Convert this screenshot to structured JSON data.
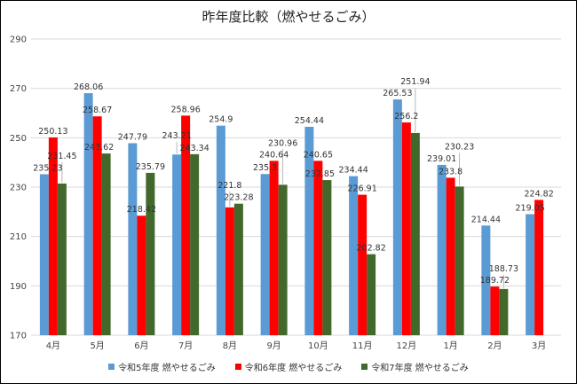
{
  "chart_data": {
    "type": "bar",
    "title": "昨年度比較（燃やせるごみ）",
    "categories": [
      "4月",
      "5月",
      "6月",
      "7月",
      "8月",
      "9月",
      "10月",
      "11月",
      "12月",
      "1月",
      "2月",
      "3月"
    ],
    "ylim": [
      170,
      290
    ],
    "yticks": [
      170,
      190,
      210,
      230,
      250,
      270,
      290
    ],
    "grid": true,
    "legend_position": "bottom",
    "series": [
      {
        "name": "令和5年度 燃やせるごみ",
        "color": "#5B9BD5",
        "values": [
          235.23,
          268.06,
          247.79,
          243.21,
          254.9,
          235.3,
          254.44,
          234.44,
          265.53,
          239.01,
          214.44,
          219.05
        ]
      },
      {
        "name": "令和6年度 燃やせるごみ",
        "color": "#FF0000",
        "values": [
          250.13,
          258.67,
          218.42,
          258.96,
          221.8,
          240.64,
          240.65,
          226.91,
          256.2,
          233.8,
          189.72,
          224.82
        ]
      },
      {
        "name": "令和7年度 燃やせるごみ",
        "color": "#43682B",
        "values": [
          231.45,
          243.62,
          235.79,
          243.34,
          223.28,
          230.96,
          232.85,
          202.82,
          251.94,
          230.23,
          188.73,
          null
        ]
      }
    ]
  }
}
